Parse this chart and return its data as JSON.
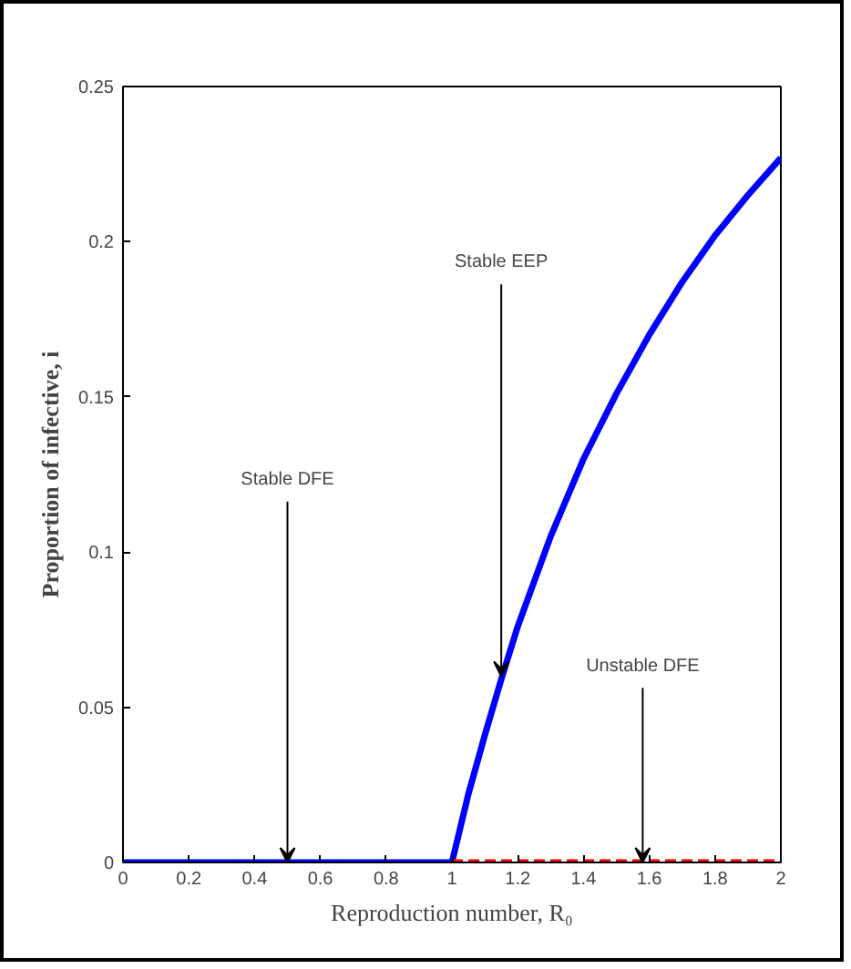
{
  "chart_data": {
    "type": "line",
    "xlabel": "Reproduction number, R₀",
    "ylabel": "Proportion of infective, i",
    "series": [
      {
        "color": "#0000ff",
        "line_style": "solid",
        "x": [
          0,
          1,
          1.05,
          1.1,
          1.15,
          1.2,
          1.3,
          1.4,
          1.5,
          1.6,
          1.7,
          1.8,
          1.9,
          2
        ],
        "values": [
          0,
          0,
          0.022,
          0.041,
          0.059,
          0.076,
          0.105,
          0.13,
          0.151,
          0.17,
          0.187,
          0.202,
          0.215,
          0.227
        ]
      },
      {
        "color": "#ff0000",
        "line_style": "dashed",
        "x": [
          1,
          2
        ],
        "values": [
          0,
          0
        ]
      }
    ],
    "annotations": [
      {
        "text": "Stable DFE",
        "x": 0.5,
        "y": 0
      },
      {
        "text": "Stable EEP",
        "x": 1.15,
        "y": 0.06
      },
      {
        "text": "Unstable DFE",
        "x": 1.58,
        "y": 0
      }
    ],
    "xlim": [
      0,
      2
    ],
    "ylim": [
      0,
      0.25
    ],
    "xticks": [
      0,
      0.2,
      0.4,
      0.6,
      0.8,
      1,
      1.2,
      1.4,
      1.6,
      1.8,
      2
    ],
    "yticks": [
      0,
      0.05,
      0.1,
      0.15,
      0.2,
      0.25
    ],
    "grid": false,
    "marker": "none"
  }
}
